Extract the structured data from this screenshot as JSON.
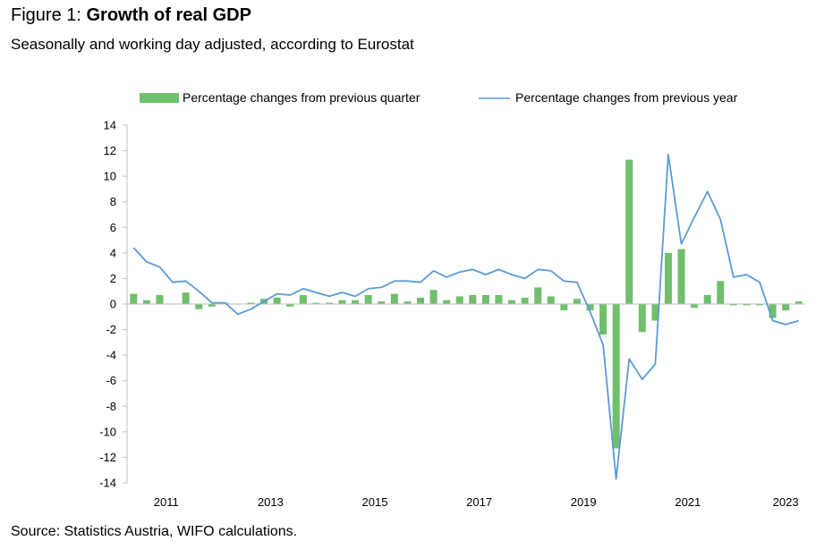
{
  "header": {
    "figure_label": "Figure 1: ",
    "title": "Growth of real GDP",
    "subtitle": "Seasonally and working day adjusted, according to Eurostat"
  },
  "footer": {
    "source": "Source: Statistics Austria, WIFO calculations."
  },
  "colors": {
    "bar": "#70bf6c",
    "line": "#5b9bd5",
    "axis": "#bfbfbf"
  },
  "chart_data": {
    "type": "bar",
    "title": "Growth of real GDP",
    "subtitle": "Seasonally and working day adjusted, according to Eurostat",
    "xlabel": "",
    "ylabel": "",
    "ylim": [
      -14,
      14
    ],
    "yticks": [
      "14",
      "12",
      "10",
      "8",
      "6",
      "4",
      "2",
      "0",
      "-2",
      "-4",
      "-6",
      "-8",
      "-10",
      "-12",
      "-14"
    ],
    "xtick_labels": [
      "2011",
      "2013",
      "2015",
      "2017",
      "2019",
      "2021",
      "2023"
    ],
    "legend": {
      "position": "top",
      "entries": [
        "Percentage changes from previous quarter",
        "Percentage changes from previous year"
      ]
    },
    "grid": false,
    "categories": [
      "2010Q4",
      "2011Q1",
      "2011Q2",
      "2011Q3",
      "2011Q4",
      "2012Q1",
      "2012Q2",
      "2012Q3",
      "2012Q4",
      "2013Q1",
      "2013Q2",
      "2013Q3",
      "2013Q4",
      "2014Q1",
      "2014Q2",
      "2014Q3",
      "2014Q4",
      "2015Q1",
      "2015Q2",
      "2015Q3",
      "2015Q4",
      "2016Q1",
      "2016Q2",
      "2016Q3",
      "2016Q4",
      "2017Q1",
      "2017Q2",
      "2017Q3",
      "2017Q4",
      "2018Q1",
      "2018Q2",
      "2018Q3",
      "2018Q4",
      "2019Q1",
      "2019Q2",
      "2019Q3",
      "2019Q4",
      "2020Q1",
      "2020Q2",
      "2020Q3",
      "2020Q4",
      "2021Q1",
      "2021Q2",
      "2021Q3",
      "2021Q4",
      "2022Q1",
      "2022Q2",
      "2022Q3",
      "2022Q4",
      "2023Q1",
      "2023Q2",
      "2023Q3"
    ],
    "series": [
      {
        "name": "Percentage changes from previous quarter",
        "type": "bar",
        "values": [
          0.8,
          0.3,
          0.7,
          0.0,
          0.9,
          -0.4,
          -0.2,
          0.1,
          0.0,
          0.1,
          0.4,
          0.5,
          -0.2,
          0.7,
          0.1,
          0.1,
          0.3,
          0.3,
          0.7,
          0.2,
          0.8,
          0.2,
          0.5,
          1.1,
          0.3,
          0.6,
          0.7,
          0.7,
          0.7,
          0.3,
          0.5,
          1.3,
          0.6,
          -0.5,
          0.4,
          -0.5,
          -2.4,
          -11.3,
          11.3,
          -2.2,
          -1.3,
          4.0,
          4.3,
          -0.3,
          0.7,
          1.8,
          -0.1,
          -0.1,
          -0.1,
          -1.1,
          -0.5,
          0.2
        ]
      },
      {
        "name": "Percentage changes from previous year",
        "type": "line",
        "values": [
          4.4,
          3.3,
          2.9,
          1.7,
          1.8,
          1.0,
          0.1,
          0.1,
          -0.8,
          -0.4,
          0.2,
          0.8,
          0.7,
          1.2,
          0.9,
          0.6,
          0.9,
          0.6,
          1.2,
          1.3,
          1.8,
          1.8,
          1.7,
          2.6,
          2.1,
          2.5,
          2.7,
          2.3,
          2.7,
          2.3,
          2.0,
          2.7,
          2.6,
          1.8,
          1.7,
          -0.6,
          -3.2,
          -13.7,
          -4.3,
          -5.9,
          -4.7,
          11.7,
          4.7,
          6.8,
          8.8,
          6.6,
          2.1,
          2.3,
          1.7,
          -1.3,
          -1.6,
          -1.3
        ]
      }
    ]
  }
}
